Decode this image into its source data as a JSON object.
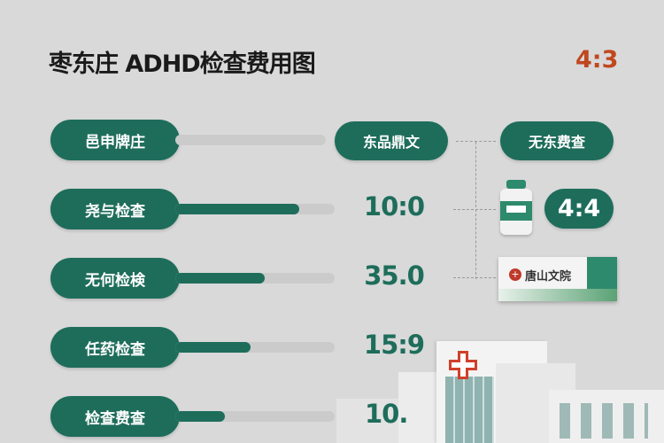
{
  "header": {
    "title": "枣东庄 ADHD检查费用图",
    "ratio": "4:3"
  },
  "columns": {
    "middle": "东品鼎文",
    "right": "无东费查"
  },
  "rows": [
    {
      "label": "邑申牌庄",
      "value": "",
      "fill": 0
    },
    {
      "label": "尧与检查",
      "value": "10:0",
      "fill": 0.78
    },
    {
      "label": "无何检検",
      "value": "35.0",
      "fill": 0.56
    },
    {
      "label": "任药检查",
      "value": "15:9",
      "fill": 0.47
    },
    {
      "label": "检查费查",
      "value": "10.",
      "fill": 0.31
    }
  ],
  "side": {
    "badge": "4:4",
    "pack_logo": "唐山文院"
  },
  "colors": {
    "green": "#1e6d5b",
    "accent": "#c0471f",
    "background": "#d9d9d9",
    "cross": "#d0402a"
  },
  "icons": [
    "medicine-bottle-icon",
    "medicine-pack-icon",
    "hospital-building-icon",
    "red-cross-icon"
  ]
}
